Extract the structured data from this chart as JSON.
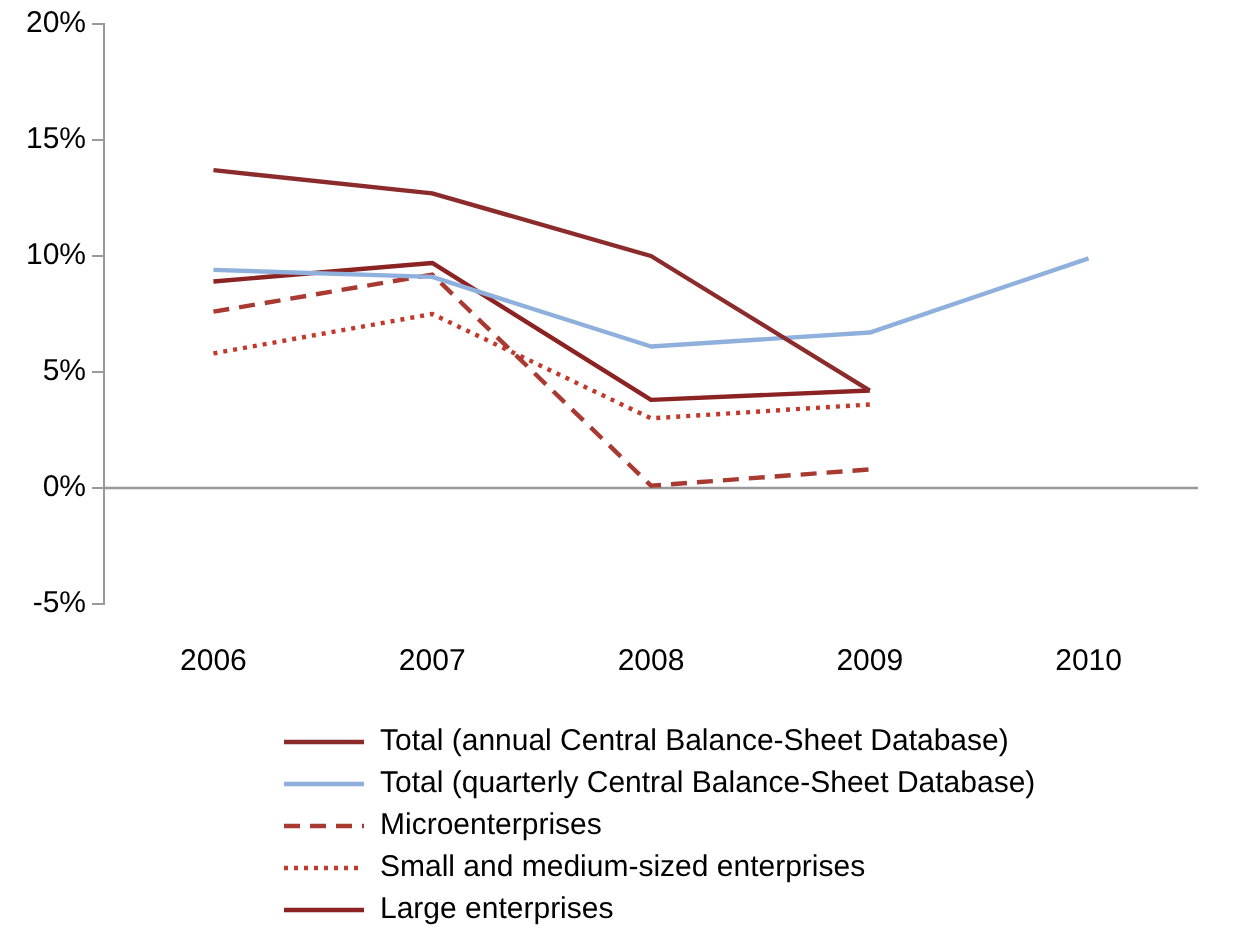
{
  "chart_data": {
    "type": "line",
    "categories": [
      "2006",
      "2007",
      "2008",
      "2009",
      "2010"
    ],
    "series": [
      {
        "name": "Total (annual Central Balance-Sheet Database)",
        "color": "#8b2b2b",
        "values": [
          13.7,
          12.7,
          10.0,
          4.2,
          null
        ],
        "line_style": "solid"
      },
      {
        "name": "Total (quarterly Central Balance-Sheet Database)",
        "color": "#8fb0dc",
        "values": [
          9.4,
          9.1,
          6.1,
          6.7,
          9.9
        ],
        "line_style": "solid"
      },
      {
        "name": "Microenterprises",
        "color": "#a83a32",
        "values": [
          7.6,
          9.2,
          0.1,
          0.8,
          null
        ],
        "line_style": "dashed"
      },
      {
        "name": "Small and medium-sized enterprises",
        "color": "#c0392b",
        "values": [
          5.8,
          7.5,
          3.0,
          3.6,
          null
        ],
        "line_style": "dotted"
      },
      {
        "name": "Large enterprises",
        "color": "#8b2323",
        "values": [
          8.9,
          9.7,
          3.8,
          4.2,
          null
        ],
        "line_style": "solid"
      }
    ],
    "ylim": [
      -5,
      20
    ],
    "yticks": [
      {
        "value": -5,
        "label": "-5%"
      },
      {
        "value": 0,
        "label": "0%"
      },
      {
        "value": 5,
        "label": "5%"
      },
      {
        "value": 10,
        "label": "10%"
      },
      {
        "value": 15,
        "label": "15%"
      },
      {
        "value": 20,
        "label": "20%"
      }
    ],
    "ref_lines": [
      {
        "axis": "y",
        "value": 0,
        "color": "#999999"
      }
    ],
    "grid": false,
    "legend": "bottom",
    "marker": "none"
  }
}
